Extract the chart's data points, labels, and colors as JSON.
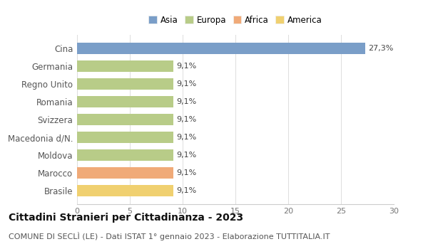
{
  "categories": [
    "Brasile",
    "Marocco",
    "Moldova",
    "Macedonia d/N.",
    "Svizzera",
    "Romania",
    "Regno Unito",
    "Germania",
    "Cina"
  ],
  "values": [
    9.1,
    9.1,
    9.1,
    9.1,
    9.1,
    9.1,
    9.1,
    9.1,
    27.3
  ],
  "bar_colors": [
    "#f0d070",
    "#f0aa78",
    "#b8cc88",
    "#b8cc88",
    "#b8cc88",
    "#b8cc88",
    "#b8cc88",
    "#b8cc88",
    "#7a9ec8"
  ],
  "bar_labels": [
    "9,1%",
    "9,1%",
    "9,1%",
    "9,1%",
    "9,1%",
    "9,1%",
    "9,1%",
    "9,1%",
    "27,3%"
  ],
  "legend_labels": [
    "Asia",
    "Europa",
    "Africa",
    "America"
  ],
  "legend_colors": [
    "#7a9ec8",
    "#b8cc88",
    "#f0aa78",
    "#f0d070"
  ],
  "xlim": [
    0,
    30
  ],
  "xticks": [
    0,
    5,
    10,
    15,
    20,
    25,
    30
  ],
  "title": "Cittadini Stranieri per Cittadinanza - 2023",
  "subtitle": "COMUNE DI SECLÌ (LE) - Dati ISTAT 1° gennaio 2023 - Elaborazione TUTTITALIA.IT",
  "background_color": "#ffffff",
  "bar_height": 0.65,
  "title_fontsize": 10,
  "subtitle_fontsize": 8
}
